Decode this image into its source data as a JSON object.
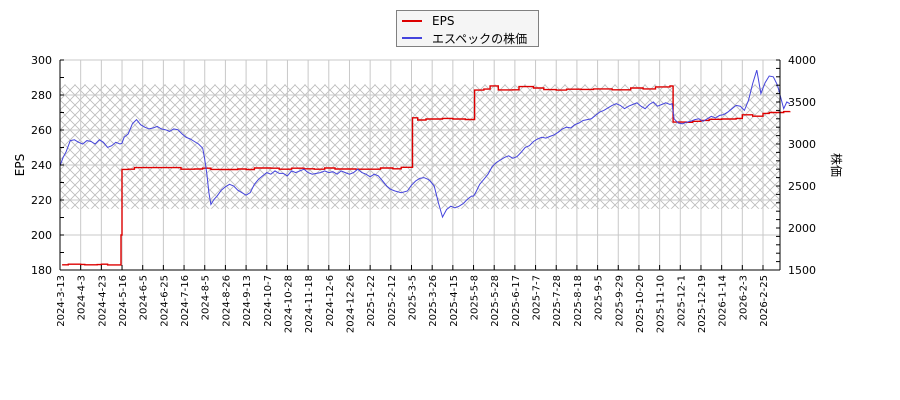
{
  "legend": {
    "items": [
      {
        "label": "EPS",
        "color": "#dd0000"
      },
      {
        "label": "エスペックの株価",
        "color": "#4444dd"
      }
    ]
  },
  "axes": {
    "left_title": "EPS",
    "right_title": "株価"
  },
  "chart_data": {
    "type": "line",
    "title": "",
    "xlabel": "",
    "ylabel": "EPS",
    "y2label": "株価",
    "ylim": [
      180,
      300
    ],
    "y2lim": [
      1500,
      4000
    ],
    "yticks": [
      180,
      200,
      220,
      240,
      260,
      280,
      300
    ],
    "y2ticks": [
      1500,
      2000,
      2500,
      3000,
      3500,
      4000
    ],
    "grid": true,
    "legend_position": "top-center",
    "shaded_band_eps": [
      215,
      286
    ],
    "x_tick_labels": [
      "2024-3-13",
      "2024-4-3",
      "2024-4-23",
      "2024-5-16",
      "2024-6-5",
      "2024-6-25",
      "2024-7-16",
      "2024-8-5",
      "2024-8-26",
      "2024-9-13",
      "2024-10-7",
      "2024-10-28",
      "2024-11-18",
      "2024-12-6",
      "2024-12-26",
      "2025-1-22",
      "2025-2-12",
      "2025-3-5",
      "2025-3-26",
      "2025-4-15",
      "2025-5-8",
      "2025-5-28",
      "2025-6-17",
      "2025-7-7",
      "2025-7-28",
      "2025-8-18",
      "2025-9-5",
      "2025-9-29",
      "2025-10-20",
      "2025-11-10",
      "2025-12-1",
      "2025-12-19",
      "2026-1-14",
      "2026-2-3",
      "2026-2-25"
    ],
    "series": [
      {
        "name": "EPS",
        "axis": "left",
        "color": "#dd0000",
        "points": [
          [
            0.1,
            183
          ],
          [
            0.4,
            183.3
          ],
          [
            1.0,
            183.2
          ],
          [
            1.2,
            183
          ],
          [
            1.8,
            183.1
          ],
          [
            2.0,
            183.3
          ],
          [
            2.3,
            182.9
          ],
          [
            2.9,
            182.9
          ],
          [
            2.95,
            200
          ],
          [
            3.0,
            237.5
          ],
          [
            3.3,
            237.6
          ],
          [
            3.6,
            238.5
          ],
          [
            5.0,
            238.5
          ],
          [
            5.8,
            238.5
          ],
          [
            5.85,
            237.6
          ],
          [
            6.5,
            237.7
          ],
          [
            6.9,
            238.2
          ],
          [
            7.3,
            237.5
          ],
          [
            7.8,
            237.4
          ],
          [
            8.6,
            237.7
          ],
          [
            9.0,
            237.4
          ],
          [
            9.4,
            238.3
          ],
          [
            10.2,
            238.2
          ],
          [
            10.6,
            237.6
          ],
          [
            11.2,
            238.2
          ],
          [
            11.8,
            237.8
          ],
          [
            12.3,
            237.6
          ],
          [
            12.8,
            238.3
          ],
          [
            13.3,
            237.7
          ],
          [
            14.3,
            237.6
          ],
          [
            15.0,
            237.6
          ],
          [
            15.5,
            238.3
          ],
          [
            16.1,
            237.8
          ],
          [
            16.5,
            238.7
          ],
          [
            17.0,
            238.7
          ],
          [
            17.05,
            267
          ],
          [
            17.3,
            265.7
          ],
          [
            17.7,
            266.3
          ],
          [
            18.5,
            266.6
          ],
          [
            19.0,
            266.3
          ],
          [
            19.6,
            266.0
          ],
          [
            20.0,
            266.0
          ],
          [
            20.05,
            282.8
          ],
          [
            20.5,
            283.4
          ],
          [
            20.8,
            285.2
          ],
          [
            21.2,
            282.9
          ],
          [
            21.9,
            283.0
          ],
          [
            22.2,
            284.8
          ],
          [
            22.9,
            284.0
          ],
          [
            23.4,
            283.1
          ],
          [
            24.0,
            282.8
          ],
          [
            24.5,
            283.3
          ],
          [
            25.2,
            283.2
          ],
          [
            25.8,
            283.5
          ],
          [
            26.7,
            283.0
          ],
          [
            27.6,
            284.0
          ],
          [
            28.2,
            283.5
          ],
          [
            28.8,
            284.6
          ],
          [
            29.5,
            285.2
          ],
          [
            29.6,
            285.1
          ],
          [
            29.65,
            264.5
          ],
          [
            30.3,
            264.4
          ],
          [
            30.6,
            265.0
          ],
          [
            31.0,
            265.5
          ],
          [
            31.4,
            266.1
          ],
          [
            32.0,
            266.3
          ],
          [
            32.7,
            266.6
          ],
          [
            33.0,
            268.7
          ],
          [
            33.5,
            267.9
          ],
          [
            34.0,
            269.5
          ],
          [
            34.3,
            270.0
          ],
          [
            35.0,
            270.5
          ],
          [
            35.3,
            270.6
          ]
        ]
      },
      {
        "name": "エスペックの株価",
        "axis": "right",
        "color": "#4444dd",
        "points": [
          [
            0.0,
            2740
          ],
          [
            0.15,
            2840
          ],
          [
            0.3,
            2910
          ],
          [
            0.5,
            3040
          ],
          [
            0.7,
            3050
          ],
          [
            0.9,
            3020
          ],
          [
            1.1,
            3000
          ],
          [
            1.3,
            3040
          ],
          [
            1.5,
            3030
          ],
          [
            1.7,
            3000
          ],
          [
            1.9,
            3050
          ],
          [
            2.1,
            3020
          ],
          [
            2.3,
            2960
          ],
          [
            2.5,
            2980
          ],
          [
            2.7,
            3020
          ],
          [
            2.9,
            3000
          ],
          [
            3.0,
            3010
          ],
          [
            3.1,
            3080
          ],
          [
            3.3,
            3120
          ],
          [
            3.5,
            3240
          ],
          [
            3.7,
            3290
          ],
          [
            3.9,
            3230
          ],
          [
            4.1,
            3200
          ],
          [
            4.3,
            3180
          ],
          [
            4.5,
            3190
          ],
          [
            4.7,
            3210
          ],
          [
            4.9,
            3180
          ],
          [
            5.1,
            3170
          ],
          [
            5.3,
            3150
          ],
          [
            5.5,
            3180
          ],
          [
            5.7,
            3170
          ],
          [
            5.9,
            3120
          ],
          [
            6.1,
            3080
          ],
          [
            6.3,
            3060
          ],
          [
            6.5,
            3030
          ],
          [
            6.7,
            3000
          ],
          [
            6.9,
            2950
          ],
          [
            7.0,
            2820
          ],
          [
            7.1,
            2650
          ],
          [
            7.2,
            2420
          ],
          [
            7.3,
            2280
          ],
          [
            7.45,
            2340
          ],
          [
            7.6,
            2380
          ],
          [
            7.8,
            2450
          ],
          [
            8.0,
            2490
          ],
          [
            8.2,
            2520
          ],
          [
            8.4,
            2500
          ],
          [
            8.6,
            2450
          ],
          [
            8.8,
            2420
          ],
          [
            9.0,
            2390
          ],
          [
            9.2,
            2420
          ],
          [
            9.4,
            2520
          ],
          [
            9.6,
            2580
          ],
          [
            9.8,
            2620
          ],
          [
            10.0,
            2660
          ],
          [
            10.2,
            2640
          ],
          [
            10.4,
            2680
          ],
          [
            10.6,
            2650
          ],
          [
            10.8,
            2650
          ],
          [
            11.0,
            2620
          ],
          [
            11.2,
            2680
          ],
          [
            11.4,
            2660
          ],
          [
            11.6,
            2680
          ],
          [
            11.8,
            2700
          ],
          [
            12.0,
            2660
          ],
          [
            12.2,
            2640
          ],
          [
            12.4,
            2650
          ],
          [
            12.6,
            2660
          ],
          [
            12.8,
            2680
          ],
          [
            13.0,
            2660
          ],
          [
            13.2,
            2670
          ],
          [
            13.4,
            2640
          ],
          [
            13.6,
            2680
          ],
          [
            13.8,
            2660
          ],
          [
            14.0,
            2640
          ],
          [
            14.2,
            2660
          ],
          [
            14.4,
            2700
          ],
          [
            14.6,
            2660
          ],
          [
            14.8,
            2640
          ],
          [
            15.0,
            2610
          ],
          [
            15.2,
            2640
          ],
          [
            15.4,
            2620
          ],
          [
            15.6,
            2560
          ],
          [
            15.8,
            2500
          ],
          [
            16.0,
            2460
          ],
          [
            16.2,
            2440
          ],
          [
            16.5,
            2420
          ],
          [
            16.8,
            2440
          ],
          [
            17.0,
            2510
          ],
          [
            17.2,
            2560
          ],
          [
            17.4,
            2590
          ],
          [
            17.6,
            2600
          ],
          [
            17.8,
            2580
          ],
          [
            17.9,
            2560
          ],
          [
            18.1,
            2500
          ],
          [
            18.3,
            2300
          ],
          [
            18.5,
            2130
          ],
          [
            18.7,
            2220
          ],
          [
            18.9,
            2260
          ],
          [
            19.1,
            2240
          ],
          [
            19.3,
            2260
          ],
          [
            19.5,
            2290
          ],
          [
            19.7,
            2340
          ],
          [
            19.9,
            2380
          ],
          [
            20.0,
            2380
          ],
          [
            20.1,
            2420
          ],
          [
            20.3,
            2520
          ],
          [
            20.5,
            2580
          ],
          [
            20.7,
            2640
          ],
          [
            20.9,
            2730
          ],
          [
            21.1,
            2780
          ],
          [
            21.3,
            2810
          ],
          [
            21.5,
            2840
          ],
          [
            21.7,
            2860
          ],
          [
            21.9,
            2830
          ],
          [
            22.1,
            2850
          ],
          [
            22.3,
            2900
          ],
          [
            22.5,
            2960
          ],
          [
            22.7,
            2980
          ],
          [
            22.9,
            3030
          ],
          [
            23.1,
            3060
          ],
          [
            23.3,
            3080
          ],
          [
            23.5,
            3070
          ],
          [
            23.7,
            3090
          ],
          [
            23.9,
            3110
          ],
          [
            24.1,
            3140
          ],
          [
            24.3,
            3180
          ],
          [
            24.5,
            3200
          ],
          [
            24.7,
            3190
          ],
          [
            24.9,
            3230
          ],
          [
            25.1,
            3250
          ],
          [
            25.3,
            3280
          ],
          [
            25.5,
            3290
          ],
          [
            25.7,
            3300
          ],
          [
            25.9,
            3340
          ],
          [
            26.1,
            3380
          ],
          [
            26.3,
            3400
          ],
          [
            26.5,
            3430
          ],
          [
            26.7,
            3460
          ],
          [
            26.9,
            3480
          ],
          [
            27.1,
            3460
          ],
          [
            27.3,
            3420
          ],
          [
            27.5,
            3450
          ],
          [
            27.7,
            3470
          ],
          [
            27.9,
            3490
          ],
          [
            28.1,
            3450
          ],
          [
            28.3,
            3420
          ],
          [
            28.5,
            3470
          ],
          [
            28.7,
            3500
          ],
          [
            28.9,
            3450
          ],
          [
            29.1,
            3470
          ],
          [
            29.3,
            3490
          ],
          [
            29.5,
            3470
          ],
          [
            29.6,
            3480
          ],
          [
            29.7,
            3300
          ],
          [
            29.9,
            3250
          ],
          [
            30.1,
            3240
          ],
          [
            30.3,
            3260
          ],
          [
            30.5,
            3270
          ],
          [
            30.7,
            3290
          ],
          [
            30.9,
            3300
          ],
          [
            31.1,
            3270
          ],
          [
            31.3,
            3300
          ],
          [
            31.5,
            3330
          ],
          [
            31.7,
            3310
          ],
          [
            31.9,
            3340
          ],
          [
            32.1,
            3350
          ],
          [
            32.3,
            3380
          ],
          [
            32.5,
            3420
          ],
          [
            32.7,
            3460
          ],
          [
            32.9,
            3450
          ],
          [
            33.1,
            3400
          ],
          [
            33.3,
            3520
          ],
          [
            33.5,
            3720
          ],
          [
            33.7,
            3880
          ],
          [
            33.9,
            3600
          ],
          [
            34.1,
            3730
          ],
          [
            34.3,
            3810
          ],
          [
            34.5,
            3800
          ],
          [
            34.7,
            3700
          ],
          [
            34.85,
            3560
          ],
          [
            35.0,
            3420
          ],
          [
            35.15,
            3500
          ],
          [
            35.3,
            3480
          ]
        ]
      }
    ]
  }
}
